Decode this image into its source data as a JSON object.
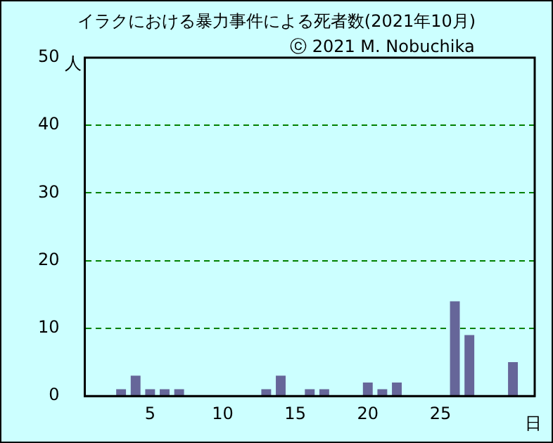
{
  "chart_data": {
    "type": "bar",
    "title": "イラクにおける暴力事件による死者数(2021年10月)",
    "subtitle": "ⓒ 2021 M. Nobuchika",
    "xlabel": "日",
    "ylabel": "人",
    "categories": [
      null,
      null,
      null,
      null,
      "5",
      null,
      null,
      null,
      null,
      "10",
      null,
      null,
      null,
      null,
      "15",
      null,
      null,
      null,
      null,
      "20",
      null,
      null,
      null,
      null,
      "25",
      null,
      null,
      null,
      null,
      null,
      null
    ],
    "values": [
      0,
      0,
      1,
      3,
      1,
      1,
      1,
      0,
      0,
      0,
      0,
      0,
      1,
      3,
      0,
      1,
      1,
      0,
      0,
      2,
      1,
      2,
      0,
      0,
      0,
      14,
      9,
      0,
      0,
      5,
      0
    ],
    "color": "#666699",
    "ylim": [
      0,
      50
    ],
    "yticks": [
      0,
      10,
      20,
      30,
      40,
      50
    ],
    "grid": "y",
    "legend": false
  }
}
